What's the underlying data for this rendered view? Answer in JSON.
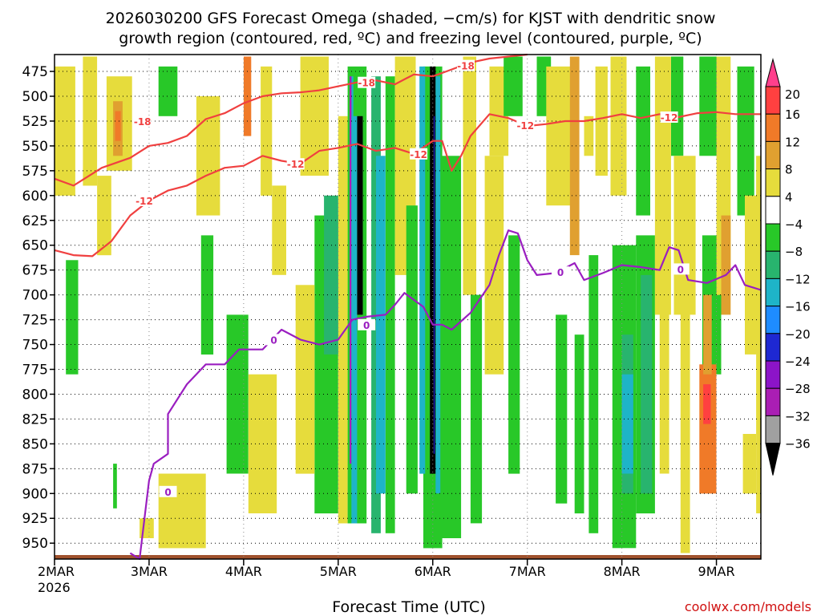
{
  "chart_data": {
    "type": "heatmap",
    "title_line1": "2026030200 GFS Forecast Omega (shaded, −cm/s) for KJST with dendritic snow",
    "title_line2": "growth region (contoured, red, ºC) and freezing level (contoured, purple, ºC)",
    "xlabel": "Forecast Time (UTC)",
    "credit": "coolwx.com/models",
    "x_ticks": [
      {
        "label": "2MAR",
        "sub": "2026",
        "day": 0
      },
      {
        "label": "3MAR",
        "sub": "",
        "day": 1
      },
      {
        "label": "4MAR",
        "sub": "",
        "day": 2
      },
      {
        "label": "5MAR",
        "sub": "",
        "day": 3
      },
      {
        "label": "6MAR",
        "sub": "",
        "day": 4
      },
      {
        "label": "7MAR",
        "sub": "",
        "day": 5
      },
      {
        "label": "8MAR",
        "sub": "",
        "day": 6
      },
      {
        "label": "9MAR",
        "sub": "",
        "day": 7
      }
    ],
    "xlim": [
      0,
      7.47
    ],
    "y_ticks": [
      475,
      500,
      525,
      550,
      575,
      600,
      625,
      650,
      675,
      700,
      725,
      750,
      775,
      800,
      825,
      850,
      875,
      900,
      925,
      950
    ],
    "ylim": [
      458,
      966
    ],
    "colorbar": {
      "labels": [
        "20",
        "16",
        "12",
        "8",
        "4",
        "−4",
        "−8",
        "−12",
        "−16",
        "−20",
        "−24",
        "−28",
        "−32",
        "−36"
      ],
      "colors": [
        "#ff3f8c",
        "#ff4040",
        "#f07a28",
        "#e0a030",
        "#e6dc3c",
        "#ffffff",
        "#28c828",
        "#28b46e",
        "#1eb4c8",
        "#1e8cff",
        "#1e28d2",
        "#8c14c8",
        "#aa1eb4",
        "#a0a0a0",
        "#000000"
      ]
    },
    "red_contours": [
      {
        "label": "-18",
        "label_at": [
          [
            0.93,
            525
          ],
          [
            3.3,
            486
          ],
          [
            4.35,
            469
          ]
        ],
        "points": [
          [
            0,
            583
          ],
          [
            0.2,
            590
          ],
          [
            0.5,
            572
          ],
          [
            0.8,
            562
          ],
          [
            1.0,
            550
          ],
          [
            1.2,
            547
          ],
          [
            1.4,
            540
          ],
          [
            1.6,
            523
          ],
          [
            1.8,
            517
          ],
          [
            2.0,
            507
          ],
          [
            2.2,
            500
          ],
          [
            2.4,
            497
          ],
          [
            2.6,
            496
          ],
          [
            2.8,
            494
          ],
          [
            3.0,
            490
          ],
          [
            3.2,
            486
          ],
          [
            3.4,
            484
          ],
          [
            3.6,
            488
          ],
          [
            3.8,
            478
          ],
          [
            4.0,
            480
          ],
          [
            4.2,
            473
          ],
          [
            4.4,
            466
          ],
          [
            4.6,
            462
          ],
          [
            4.8,
            460
          ],
          [
            5.0,
            458
          ]
        ]
      },
      {
        "label": "-12",
        "label_at": [
          [
            0.95,
            605
          ],
          [
            2.55,
            568
          ],
          [
            3.85,
            558
          ],
          [
            4.98,
            529
          ],
          [
            6.5,
            521
          ]
        ],
        "points": [
          [
            0,
            655
          ],
          [
            0.2,
            660
          ],
          [
            0.4,
            661
          ],
          [
            0.6,
            646
          ],
          [
            0.8,
            620
          ],
          [
            1.0,
            605
          ],
          [
            1.2,
            595
          ],
          [
            1.4,
            590
          ],
          [
            1.6,
            580
          ],
          [
            1.8,
            572
          ],
          [
            2.0,
            570
          ],
          [
            2.2,
            560
          ],
          [
            2.4,
            565
          ],
          [
            2.6,
            568
          ],
          [
            2.8,
            555
          ],
          [
            3.0,
            552
          ],
          [
            3.2,
            548
          ],
          [
            3.4,
            555
          ],
          [
            3.6,
            552
          ],
          [
            3.8,
            558
          ],
          [
            4.0,
            545
          ],
          [
            4.1,
            545
          ],
          [
            4.2,
            575
          ],
          [
            4.3,
            560
          ],
          [
            4.4,
            540
          ],
          [
            4.6,
            518
          ],
          [
            4.8,
            522
          ],
          [
            5.0,
            530
          ],
          [
            5.2,
            528
          ],
          [
            5.4,
            525
          ],
          [
            5.6,
            525
          ],
          [
            5.8,
            522
          ],
          [
            6.0,
            518
          ],
          [
            6.2,
            522
          ],
          [
            6.4,
            518
          ],
          [
            6.6,
            521
          ],
          [
            6.8,
            517
          ],
          [
            7.0,
            516
          ],
          [
            7.2,
            518
          ],
          [
            7.47,
            518
          ]
        ]
      }
    ],
    "purple_contour": {
      "label": "0",
      "label_at": [
        [
          1.2,
          898
        ],
        [
          2.32,
          745
        ],
        [
          3.3,
          730
        ],
        [
          5.35,
          677
        ],
        [
          6.62,
          674
        ]
      ],
      "points": [
        [
          0.8,
          960
        ],
        [
          0.9,
          966
        ],
        [
          1.0,
          887
        ],
        [
          1.05,
          870
        ],
        [
          1.2,
          860
        ],
        [
          1.2,
          820
        ],
        [
          1.4,
          790
        ],
        [
          1.6,
          770
        ],
        [
          1.8,
          770
        ],
        [
          1.95,
          755
        ],
        [
          2.2,
          755
        ],
        [
          2.4,
          735
        ],
        [
          2.6,
          745
        ],
        [
          2.8,
          750
        ],
        [
          3.0,
          745
        ],
        [
          3.15,
          725
        ],
        [
          3.3,
          722
        ],
        [
          3.5,
          720
        ],
        [
          3.6,
          710
        ],
        [
          3.7,
          698
        ],
        [
          3.9,
          712
        ],
        [
          4.0,
          730
        ],
        [
          4.1,
          730
        ],
        [
          4.2,
          735
        ],
        [
          4.4,
          718
        ],
        [
          4.6,
          690
        ],
        [
          4.7,
          660
        ],
        [
          4.8,
          635
        ],
        [
          4.9,
          638
        ],
        [
          5.0,
          665
        ],
        [
          5.1,
          680
        ],
        [
          5.3,
          678
        ],
        [
          5.5,
          668
        ],
        [
          5.6,
          685
        ],
        [
          5.8,
          678
        ],
        [
          6.0,
          670
        ],
        [
          6.2,
          672
        ],
        [
          6.4,
          675
        ],
        [
          6.5,
          652
        ],
        [
          6.6,
          655
        ],
        [
          6.7,
          685
        ],
        [
          6.9,
          688
        ],
        [
          7.1,
          680
        ],
        [
          7.2,
          670
        ],
        [
          7.3,
          690
        ],
        [
          7.47,
          695
        ]
      ]
    },
    "shaded_cells": [
      {
        "x0": 0.0,
        "x1": 0.22,
        "p0": 470,
        "p1": 600,
        "v": 6
      },
      {
        "x0": 0.3,
        "x1": 0.45,
        "p0": 460,
        "p1": 590,
        "v": 6
      },
      {
        "x0": 0.55,
        "x1": 0.82,
        "p0": 480,
        "p1": 575,
        "v": 6
      },
      {
        "x0": 0.62,
        "x1": 0.72,
        "p0": 505,
        "p1": 560,
        "v": 10
      },
      {
        "x0": 0.64,
        "x1": 0.7,
        "p0": 515,
        "p1": 545,
        "v": 14
      },
      {
        "x0": 0.45,
        "x1": 0.6,
        "p0": 580,
        "p1": 660,
        "v": 6
      },
      {
        "x0": 0.12,
        "x1": 0.25,
        "p0": 665,
        "p1": 780,
        "v": -6
      },
      {
        "x0": 0.62,
        "x1": 0.66,
        "p0": 870,
        "p1": 915,
        "v": -6
      },
      {
        "x0": 1.1,
        "x1": 1.6,
        "p0": 880,
        "p1": 955,
        "v": 6
      },
      {
        "x0": 0.9,
        "x1": 1.05,
        "p0": 925,
        "p1": 945,
        "v": 6
      },
      {
        "x0": 1.1,
        "x1": 1.3,
        "p0": 470,
        "p1": 520,
        "v": -6
      },
      {
        "x0": 1.5,
        "x1": 1.75,
        "p0": 500,
        "p1": 620,
        "v": 6
      },
      {
        "x0": 1.55,
        "x1": 1.68,
        "p0": 640,
        "p1": 760,
        "v": -6
      },
      {
        "x0": 2.0,
        "x1": 2.08,
        "p0": 460,
        "p1": 540,
        "v": 14
      },
      {
        "x0": 2.18,
        "x1": 2.3,
        "p0": 470,
        "p1": 600,
        "v": 6
      },
      {
        "x0": 2.3,
        "x1": 2.45,
        "p0": 590,
        "p1": 680,
        "v": 6
      },
      {
        "x0": 1.82,
        "x1": 2.05,
        "p0": 720,
        "p1": 880,
        "v": -6
      },
      {
        "x0": 2.05,
        "x1": 2.35,
        "p0": 780,
        "p1": 920,
        "v": 6
      },
      {
        "x0": 2.6,
        "x1": 2.9,
        "p0": 460,
        "p1": 580,
        "v": 6
      },
      {
        "x0": 2.75,
        "x1": 3.0,
        "p0": 620,
        "p1": 920,
        "v": -6
      },
      {
        "x0": 2.55,
        "x1": 2.75,
        "p0": 690,
        "p1": 880,
        "v": 6
      },
      {
        "x0": 3.0,
        "x1": 3.1,
        "p0": 520,
        "p1": 930,
        "v": 6
      },
      {
        "x0": 2.85,
        "x1": 3.0,
        "p0": 600,
        "p1": 760,
        "v": -10
      },
      {
        "x0": 3.1,
        "x1": 3.3,
        "p0": 470,
        "p1": 930,
        "v": -6
      },
      {
        "x0": 3.12,
        "x1": 3.16,
        "p0": 480,
        "p1": 780,
        "v": -14
      },
      {
        "x0": 3.35,
        "x1": 3.45,
        "p0": 480,
        "p1": 940,
        "v": -10
      },
      {
        "x0": 3.5,
        "x1": 3.6,
        "p0": 480,
        "p1": 940,
        "v": -6
      },
      {
        "x0": 3.4,
        "x1": 3.5,
        "p0": 560,
        "p1": 900,
        "v": -14
      },
      {
        "x0": 3.6,
        "x1": 3.82,
        "p0": 460,
        "p1": 680,
        "v": 6
      },
      {
        "x0": 3.72,
        "x1": 3.84,
        "p0": 610,
        "p1": 900,
        "v": -6
      },
      {
        "x0": 3.9,
        "x1": 4.1,
        "p0": 470,
        "p1": 955,
        "v": -6
      },
      {
        "x0": 4.1,
        "x1": 4.3,
        "p0": 560,
        "p1": 945,
        "v": -6
      },
      {
        "x0": 4.32,
        "x1": 4.46,
        "p0": 460,
        "p1": 700,
        "v": 6
      },
      {
        "x0": 4.4,
        "x1": 4.52,
        "p0": 700,
        "p1": 930,
        "v": -6
      },
      {
        "x0": 4.6,
        "x1": 4.8,
        "p0": 470,
        "p1": 560,
        "v": 6
      },
      {
        "x0": 4.55,
        "x1": 4.75,
        "p0": 560,
        "p1": 780,
        "v": 6
      },
      {
        "x0": 4.75,
        "x1": 4.95,
        "p0": 460,
        "p1": 520,
        "v": -6
      },
      {
        "x0": 4.8,
        "x1": 4.92,
        "p0": 640,
        "p1": 880,
        "v": -6
      },
      {
        "x0": 5.1,
        "x1": 5.25,
        "p0": 460,
        "p1": 520,
        "v": -6
      },
      {
        "x0": 5.2,
        "x1": 5.5,
        "p0": 470,
        "p1": 610,
        "v": 6
      },
      {
        "x0": 5.45,
        "x1": 5.55,
        "p0": 460,
        "p1": 660,
        "v": 10
      },
      {
        "x0": 5.6,
        "x1": 5.7,
        "p0": 520,
        "p1": 560,
        "v": 6
      },
      {
        "x0": 5.3,
        "x1": 5.42,
        "p0": 720,
        "p1": 910,
        "v": -6
      },
      {
        "x0": 5.5,
        "x1": 5.6,
        "p0": 740,
        "p1": 920,
        "v": -6
      },
      {
        "x0": 5.72,
        "x1": 5.85,
        "p0": 470,
        "p1": 580,
        "v": 6
      },
      {
        "x0": 5.65,
        "x1": 5.75,
        "p0": 660,
        "p1": 940,
        "v": -6
      },
      {
        "x0": 5.88,
        "x1": 6.05,
        "p0": 460,
        "p1": 600,
        "v": 6
      },
      {
        "x0": 5.9,
        "x1": 6.15,
        "p0": 650,
        "p1": 955,
        "v": -6
      },
      {
        "x0": 6.0,
        "x1": 6.12,
        "p0": 740,
        "p1": 900,
        "v": -10
      },
      {
        "x0": 6.15,
        "x1": 6.3,
        "p0": 470,
        "p1": 620,
        "v": -6
      },
      {
        "x0": 6.15,
        "x1": 6.35,
        "p0": 640,
        "p1": 920,
        "v": -6
      },
      {
        "x0": 6.2,
        "x1": 6.32,
        "p0": 680,
        "p1": 900,
        "v": -10
      },
      {
        "x0": 6.35,
        "x1": 6.52,
        "p0": 460,
        "p1": 720,
        "v": 6
      },
      {
        "x0": 6.4,
        "x1": 6.5,
        "p0": 700,
        "p1": 880,
        "v": 6
      },
      {
        "x0": 6.52,
        "x1": 6.65,
        "p0": 460,
        "p1": 560,
        "v": -6
      },
      {
        "x0": 6.55,
        "x1": 6.78,
        "p0": 560,
        "p1": 720,
        "v": 6
      },
      {
        "x0": 6.62,
        "x1": 6.72,
        "p0": 700,
        "p1": 960,
        "v": 6
      },
      {
        "x0": 6.82,
        "x1": 7.02,
        "p0": 460,
        "p1": 560,
        "v": -6
      },
      {
        "x0": 6.85,
        "x1": 7.05,
        "p0": 640,
        "p1": 780,
        "v": -6
      },
      {
        "x0": 7.0,
        "x1": 7.15,
        "p0": 460,
        "p1": 700,
        "v": 6
      },
      {
        "x0": 7.05,
        "x1": 7.15,
        "p0": 620,
        "p1": 720,
        "v": 10
      },
      {
        "x0": 7.22,
        "x1": 7.4,
        "p0": 470,
        "p1": 620,
        "v": -6
      },
      {
        "x0": 7.3,
        "x1": 7.45,
        "p0": 600,
        "p1": 760,
        "v": 6
      },
      {
        "x0": 7.28,
        "x1": 7.42,
        "p0": 840,
        "p1": 900,
        "v": 6
      }
    ],
    "strong_cells": [
      {
        "x0": 3.12,
        "x1": 3.14,
        "p0": 480,
        "p1": 870,
        "v": -30
      },
      {
        "x0": 3.2,
        "x1": 3.26,
        "p0": 520,
        "p1": 720,
        "v": -40
      },
      {
        "x0": 3.14,
        "x1": 3.2,
        "p0": 520,
        "p1": 930,
        "v": -14
      },
      {
        "x0": 3.86,
        "x1": 3.92,
        "p0": 470,
        "p1": 880,
        "v": -14
      },
      {
        "x0": 3.97,
        "x1": 4.03,
        "p0": 470,
        "p1": 880,
        "v": -40
      },
      {
        "x0": 4.01,
        "x1": 4.02,
        "p0": 520,
        "p1": 860,
        "v": -20
      },
      {
        "x0": 4.03,
        "x1": 4.08,
        "p0": 480,
        "p1": 900,
        "v": -14
      },
      {
        "x0": 6.82,
        "x1": 7.0,
        "p0": 770,
        "p1": 900,
        "v": 12
      },
      {
        "x0": 6.86,
        "x1": 6.95,
        "p0": 700,
        "p1": 780,
        "v": 8
      },
      {
        "x0": 6.86,
        "x1": 6.94,
        "p0": 790,
        "p1": 830,
        "v": 18
      },
      {
        "x0": 6.0,
        "x1": 6.12,
        "p0": 780,
        "p1": 880,
        "v": -14
      },
      {
        "x0": 7.42,
        "x1": 7.47,
        "p0": 560,
        "p1": 920,
        "v": 6
      }
    ],
    "terrain": {
      "color": "#a0522d",
      "surface_p": 962
    }
  }
}
